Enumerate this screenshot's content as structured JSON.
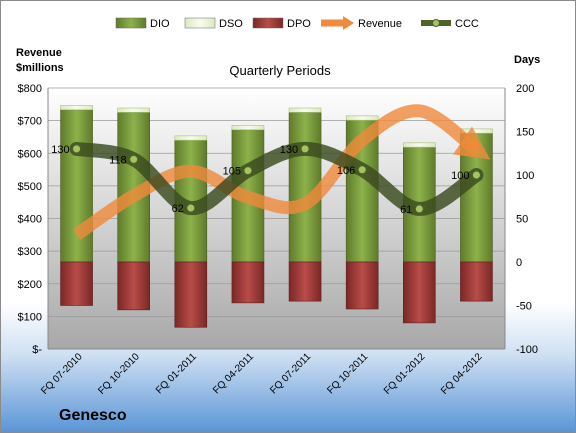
{
  "company": "Genesco",
  "chart_data": {
    "type": "bar",
    "title": "Quarterly Periods",
    "y_left_label_line1": "Revenue",
    "y_left_label_line2": "$millions",
    "y_right_label": "Days",
    "categories": [
      "FQ 07-2010",
      "FQ 10-2010",
      "FQ 01-2011",
      "FQ 04-2011",
      "FQ 07-2011",
      "FQ 10-2011",
      "FQ 01-2012",
      "FQ 04-2012"
    ],
    "left_axis": {
      "min": 0,
      "max": 800,
      "ticks": [
        "$-",
        "$100",
        "$200",
        "$300",
        "$400",
        "$500",
        "$600",
        "$700",
        "$800"
      ]
    },
    "right_axis": {
      "min": -100,
      "max": 200,
      "ticks": [
        "-100",
        "-50",
        "0",
        "50",
        "100",
        "150",
        "200"
      ]
    },
    "grid": true,
    "legend_position": "top",
    "series": [
      {
        "name": "DIO",
        "axis": "right",
        "values": [
          175,
          172,
          140,
          152,
          172,
          163,
          132,
          148
        ],
        "color": "#77933c"
      },
      {
        "name": "DSO",
        "axis": "right",
        "values": [
          5,
          5,
          5,
          5,
          5,
          5,
          5,
          5
        ],
        "color": "#eef5dc"
      },
      {
        "name": "DPO",
        "axis": "right",
        "values": [
          -50,
          -55,
          -75,
          -47,
          -45,
          -54,
          -70,
          -45
        ],
        "color": "#953735"
      },
      {
        "name": "Revenue",
        "axis": "left",
        "values": [
          350,
          470,
          545,
          465,
          445,
          640,
          730,
          610
        ],
        "color": "#e46c0a"
      },
      {
        "name": "CCC",
        "axis": "right",
        "values": [
          130,
          118,
          62,
          105,
          130,
          106,
          61,
          100
        ],
        "color": "#4f6228"
      }
    ],
    "data_labels": [
      "130",
      "118",
      "62",
      "105",
      "130",
      "106",
      "61",
      "100"
    ]
  }
}
